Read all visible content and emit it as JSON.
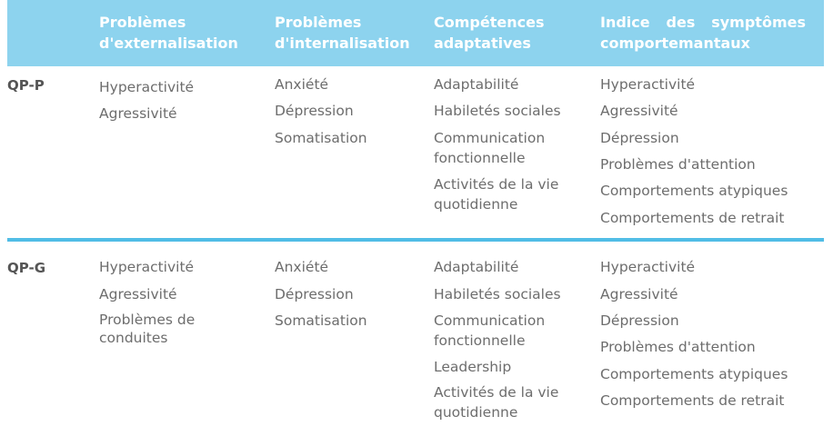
{
  "headers": [
    "Problèmes d'externalisation",
    "Problèmes d'internalisation",
    "Compétences adaptatives",
    "Indice des symptômes comportemantaux"
  ],
  "rows": [
    {
      "label": "QP-P",
      "externalisation": [
        "Hyperactivité",
        "Agressivité"
      ],
      "internalisation": [
        "Anxiété",
        "Dépression",
        "Somatisation"
      ],
      "adaptatives": [
        "Adaptabilité",
        "Habiletés sociales",
        "Communication fonctionnelle",
        "Activités de la vie quotidienne"
      ],
      "indice": [
        "Hyperactivité",
        "Agressivité",
        "Dépression",
        "Problèmes d'attention",
        "Comportements atypiques",
        "Comportements de retrait"
      ]
    },
    {
      "label": "QP-G",
      "externalisation": [
        "Hyperactivité",
        "Agressivité",
        "Problèmes de conduites"
      ],
      "internalisation": [
        "Anxiété",
        "Dépression",
        "Somatisation"
      ],
      "adaptatives": [
        "Adaptabilité",
        "Habiletés sociales",
        "Communication fonctionnelle",
        "Leadership",
        "Activités de la vie quotidienne"
      ],
      "indice": [
        "Hyperactivité",
        "Agressivité",
        "Dépression",
        "Problèmes d'attention",
        "Comportements atypiques",
        "Comportements de retrait"
      ]
    }
  ],
  "colors": {
    "header_bg": "#8dd3ee",
    "divider": "#51bde6",
    "header_text": "#ffffff",
    "body_text": "#6d6d6d"
  }
}
